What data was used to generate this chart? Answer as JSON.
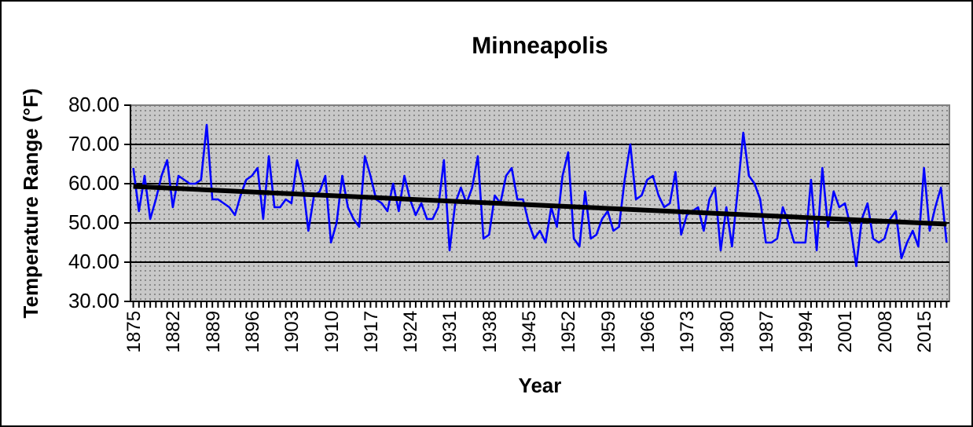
{
  "chart_data": {
    "type": "line",
    "title": "Minneapolis",
    "xlabel": "Year",
    "ylabel": "Temperature Range (°F)",
    "categories": [
      "1875",
      null,
      null,
      null,
      null,
      null,
      null,
      "1882",
      null,
      null,
      null,
      null,
      null,
      null,
      "1889",
      null,
      null,
      null,
      null,
      null,
      null,
      "1896",
      null,
      null,
      null,
      null,
      null,
      null,
      "1903",
      null,
      null,
      null,
      null,
      null,
      null,
      "1910",
      null,
      null,
      null,
      null,
      null,
      null,
      "1917",
      null,
      null,
      null,
      null,
      null,
      null,
      "1924",
      null,
      null,
      null,
      null,
      null,
      null,
      "1931",
      null,
      null,
      null,
      null,
      null,
      null,
      "1938",
      null,
      null,
      null,
      null,
      null,
      null,
      "1945",
      null,
      null,
      null,
      null,
      null,
      null,
      "1952",
      null,
      null,
      null,
      null,
      null,
      null,
      "1959",
      null,
      null,
      null,
      null,
      null,
      null,
      "1966",
      null,
      null,
      null,
      null,
      null,
      null,
      "1973",
      null,
      null,
      null,
      null,
      null,
      null,
      "1980",
      null,
      null,
      null,
      null,
      null,
      null,
      "1987",
      null,
      null,
      null,
      null,
      null,
      null,
      "1994",
      null,
      null,
      null,
      null,
      null,
      null,
      "2001",
      null,
      null,
      null,
      null,
      null,
      null,
      "2008",
      null,
      null,
      null,
      null,
      null,
      null,
      "2015",
      null,
      null,
      null,
      null
    ],
    "series": [
      {
        "color": "#0000ff",
        "values": [
          64,
          53,
          62,
          51,
          56,
          62,
          66,
          54,
          62,
          61,
          60,
          60,
          61,
          75,
          56,
          56,
          55,
          54,
          52,
          57,
          61,
          62,
          64,
          51,
          67,
          54,
          54,
          56,
          55,
          66,
          60,
          48,
          57,
          58,
          62,
          45,
          50,
          62,
          54,
          51,
          49,
          67,
          62,
          56,
          55,
          53,
          60,
          53,
          62,
          56,
          52,
          55,
          51,
          51,
          54,
          66,
          43,
          55,
          59,
          55,
          59,
          67,
          46,
          47,
          57,
          55,
          62,
          64,
          56,
          56,
          50,
          46,
          48,
          45,
          54,
          49,
          62,
          68,
          46,
          44,
          58,
          46,
          47,
          51,
          53,
          48,
          49,
          61,
          70,
          56,
          57,
          61,
          62,
          57,
          54,
          55,
          63,
          47,
          52,
          53,
          54,
          48,
          56,
          59,
          43,
          54,
          44,
          58,
          73,
          62,
          60,
          56,
          45,
          45,
          46,
          54,
          50,
          45,
          45,
          45,
          61,
          43,
          64,
          49,
          58,
          54,
          55,
          49,
          39,
          51,
          55,
          46,
          45,
          46,
          51,
          53,
          41,
          45,
          48,
          44,
          64,
          48,
          54,
          59,
          45
        ]
      },
      {
        "type": "line",
        "color": "#000000",
        "values": [
          59.3,
          null,
          null,
          null,
          null,
          null,
          null,
          null,
          null,
          null,
          null,
          null,
          null,
          null,
          null,
          null,
          null,
          null,
          null,
          null,
          null,
          null,
          null,
          null,
          null,
          null,
          null,
          null,
          null,
          null,
          null,
          null,
          null,
          null,
          null,
          null,
          null,
          null,
          null,
          null,
          null,
          null,
          null,
          null,
          null,
          null,
          null,
          null,
          null,
          null,
          null,
          null,
          null,
          null,
          null,
          null,
          null,
          null,
          null,
          null,
          null,
          null,
          null,
          null,
          null,
          null,
          null,
          null,
          null,
          null,
          null,
          null,
          null,
          null,
          null,
          null,
          null,
          null,
          null,
          null,
          null,
          null,
          null,
          null,
          null,
          null,
          null,
          null,
          null,
          null,
          null,
          null,
          null,
          null,
          null,
          null,
          null,
          null,
          null,
          null,
          null,
          null,
          null,
          null,
          null,
          null,
          null,
          null,
          null,
          null,
          null,
          null,
          null,
          null,
          null,
          null,
          null,
          null,
          null,
          null,
          null,
          null,
          null,
          null,
          null,
          null,
          null,
          null,
          null,
          null,
          null,
          null,
          null,
          null,
          null,
          null,
          null,
          null,
          null,
          null,
          null,
          null,
          null,
          null,
          49.7
        ]
      }
    ],
    "ylim": [
      30,
      80
    ],
    "yticks": [
      {
        "value": 30,
        "label": "30.00"
      },
      {
        "value": 40,
        "label": "40.00"
      },
      {
        "value": 50,
        "label": "50.00"
      },
      {
        "value": 60,
        "label": "60.00"
      },
      {
        "value": 70,
        "label": "70.00"
      },
      {
        "value": 80,
        "label": "80.00"
      }
    ],
    "grid": "y",
    "marker": "none",
    "line_style": "solid"
  }
}
